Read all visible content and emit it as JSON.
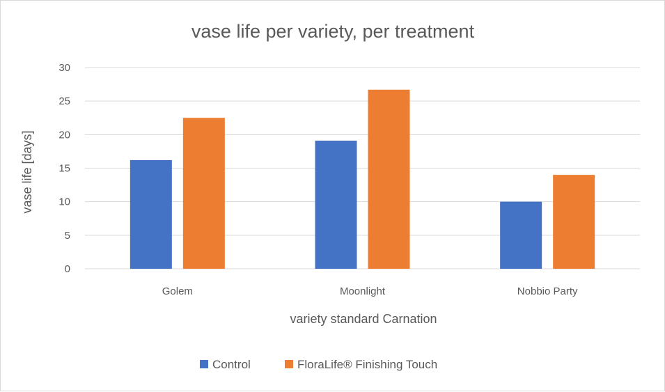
{
  "chart_data": {
    "type": "bar",
    "title": "vase life per variety, per treatment",
    "xlabel": "variety standard Carnation",
    "ylabel": "vase life [days]",
    "categories": [
      "Golem",
      "Moonlight",
      "Nobbio Party"
    ],
    "series": [
      {
        "name": "Control",
        "values": [
          16.2,
          19.1,
          10.0
        ],
        "color": "#4472c4"
      },
      {
        "name": "FloraLife® Finishing Touch",
        "values": [
          22.5,
          26.7,
          14.0
        ],
        "color": "#ed7d31"
      }
    ],
    "yticks": [
      "0",
      "5",
      "10",
      "15",
      "20",
      "25",
      "30"
    ],
    "ylim": [
      0,
      30
    ],
    "grid": true,
    "legend_position": "bottom",
    "colors": {
      "grid": "#d9d9d9",
      "text": "#595959"
    }
  }
}
